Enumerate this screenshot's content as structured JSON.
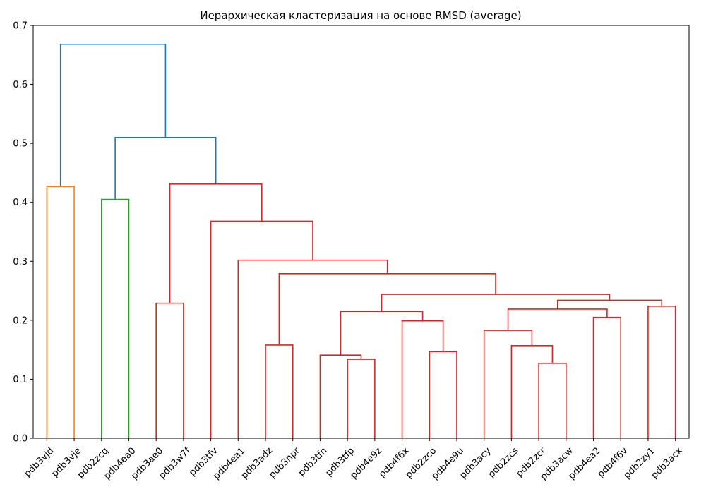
{
  "chart_data": {
    "type": "dendrogram",
    "title": "Иерархическая кластеризация на основе RMSD (average)",
    "xlabel": "",
    "ylabel": "",
    "ylim": [
      0,
      0.7
    ],
    "yticks": [
      "0.0",
      "0.1",
      "0.2",
      "0.3",
      "0.4",
      "0.5",
      "0.6",
      "0.7"
    ],
    "grid": false,
    "leaves": [
      "pdb3vjd",
      "pdb3vje",
      "pdb2zcq",
      "pdb4ea0",
      "pdb3ae0",
      "pdb3w7f",
      "pdb3tfv",
      "pdb4ea1",
      "pdb3adz",
      "pdb3npr",
      "pdb3tfn",
      "pdb3tfp",
      "pdb4e9z",
      "pdb4f6x",
      "pdb2zco",
      "pdb4e9u",
      "pdb3acy",
      "pdb2zcs",
      "pdb2zcr",
      "pdb3acw",
      "pdb4ea2",
      "pdb4f6v",
      "pdb2zy1",
      "pdb3acx"
    ],
    "colors": {
      "C0": "#1f77b4",
      "C1": "#ff7f0e",
      "C2": "#2ca02c",
      "C3": "#d62728"
    },
    "merges": [
      {
        "id": "A",
        "left": "pdb3vjd",
        "right": "pdb3vje",
        "height": 0.427,
        "color": "C1"
      },
      {
        "id": "B",
        "left": "pdb2zcq",
        "right": "pdb4ea0",
        "height": 0.405,
        "color": "C2"
      },
      {
        "id": "C",
        "left": "pdb3ae0",
        "right": "pdb3w7f",
        "height": 0.229,
        "color": "C3"
      },
      {
        "id": "D",
        "left": "pdb3adz",
        "right": "pdb3npr",
        "height": 0.158,
        "color": "C3"
      },
      {
        "id": "E",
        "left": "pdb3tfp",
        "right": "pdb4e9z",
        "height": 0.134,
        "color": "C3"
      },
      {
        "id": "F",
        "left": "pdb3tfn",
        "right": "E",
        "height": 0.141,
        "color": "C3"
      },
      {
        "id": "G",
        "left": "pdb2zco",
        "right": "pdb4e9u",
        "height": 0.147,
        "color": "C3"
      },
      {
        "id": "H",
        "left": "pdb4f6x",
        "right": "G",
        "height": 0.199,
        "color": "C3"
      },
      {
        "id": "I",
        "left": "F",
        "right": "H",
        "height": 0.215,
        "color": "C3"
      },
      {
        "id": "J",
        "left": "pdb2zcr",
        "right": "pdb3acw",
        "height": 0.127,
        "color": "C3"
      },
      {
        "id": "K",
        "left": "pdb2zcs",
        "right": "J",
        "height": 0.157,
        "color": "C3"
      },
      {
        "id": "L",
        "left": "pdb3acy",
        "right": "K",
        "height": 0.183,
        "color": "C3"
      },
      {
        "id": "M",
        "left": "pdb4ea2",
        "right": "pdb4f6v",
        "height": 0.205,
        "color": "C3"
      },
      {
        "id": "N",
        "left": "L",
        "right": "M",
        "height": 0.219,
        "color": "C3"
      },
      {
        "id": "O",
        "left": "pdb2zy1",
        "right": "pdb3acx",
        "height": 0.224,
        "color": "C3"
      },
      {
        "id": "P",
        "left": "N",
        "right": "O",
        "height": 0.234,
        "color": "C3"
      },
      {
        "id": "Q",
        "left": "I",
        "right": "P",
        "height": 0.244,
        "color": "C3"
      },
      {
        "id": "R",
        "left": "D",
        "right": "Q",
        "height": 0.279,
        "color": "C3"
      },
      {
        "id": "S",
        "left": "pdb4ea1",
        "right": "R",
        "height": 0.302,
        "color": "C3"
      },
      {
        "id": "T",
        "left": "pdb3tfv",
        "right": "S",
        "height": 0.368,
        "color": "C3"
      },
      {
        "id": "U",
        "left": "C",
        "right": "T",
        "height": 0.431,
        "color": "C3"
      },
      {
        "id": "V",
        "left": "B",
        "right": "U",
        "height": 0.51,
        "color": "C0"
      },
      {
        "id": "W",
        "left": "A",
        "right": "V",
        "height": 0.668,
        "color": "C0"
      }
    ]
  }
}
